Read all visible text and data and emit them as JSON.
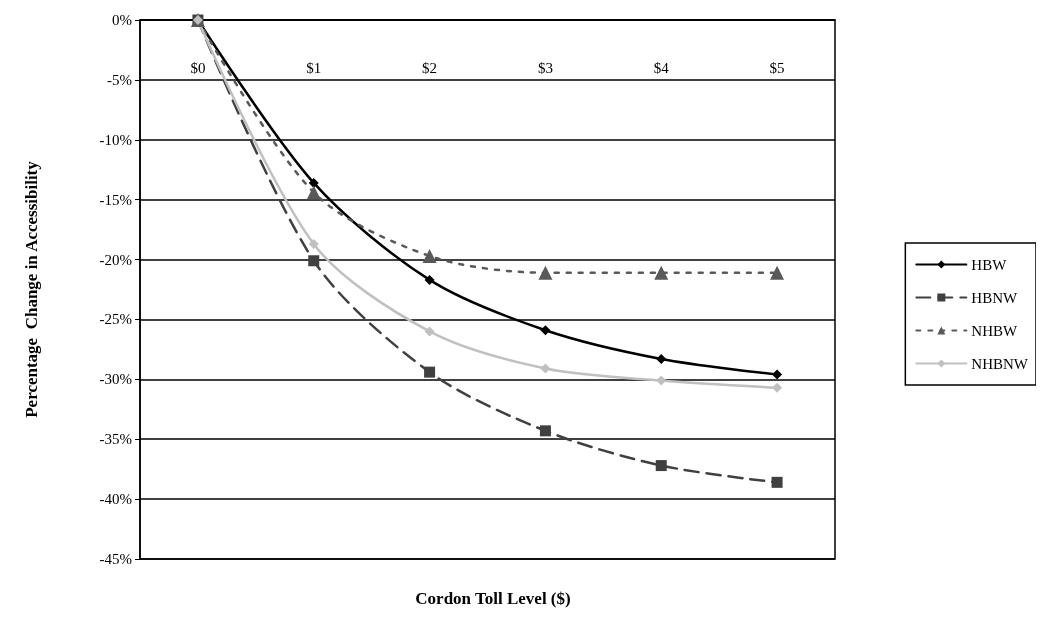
{
  "chart_data": {
    "type": "line",
    "xlabel": "Cordon Toll Level ($)",
    "ylabel": "Percentage  Change in Accessibility",
    "categories": [
      "$0",
      "$1",
      "$2",
      "$3",
      "$4",
      "$5"
    ],
    "series": [
      {
        "name": "HBW",
        "color": "#000000",
        "marker": "diamond",
        "line_style": "solid",
        "values": [
          0,
          -13.6,
          -21.7,
          -25.9,
          -28.3,
          -29.6
        ]
      },
      {
        "name": "HBNW",
        "color": "#404040",
        "marker": "square",
        "line_style": "dashed",
        "values": [
          0,
          -20.1,
          -29.4,
          -34.3,
          -37.2,
          -38.6
        ]
      },
      {
        "name": "NHBW",
        "color": "#595959",
        "marker": "triangle",
        "line_style": "dotted",
        "values": [
          0,
          -14.4,
          -19.7,
          -21.1,
          -21.1,
          -21.1
        ]
      },
      {
        "name": "NHBNW",
        "color": "#c0c0c0",
        "marker": "diamond",
        "line_style": "solid",
        "values": [
          0,
          -18.7,
          -26,
          -29.1,
          -30.1,
          -30.7
        ]
      }
    ],
    "ylim": [
      -45,
      0
    ],
    "yticks": [
      {
        "value": 0,
        "label": "0%"
      },
      {
        "value": -5,
        "label": "-5%"
      },
      {
        "value": -10,
        "label": "-10%"
      },
      {
        "value": -15,
        "label": "-15%"
      },
      {
        "value": -20,
        "label": "-20%"
      },
      {
        "value": -25,
        "label": "-25%"
      },
      {
        "value": -30,
        "label": "-30%"
      },
      {
        "value": -35,
        "label": "-35%"
      },
      {
        "value": -40,
        "label": "-40%"
      },
      {
        "value": -45,
        "label": "-45%"
      }
    ],
    "grid": "y",
    "legend": "right"
  }
}
